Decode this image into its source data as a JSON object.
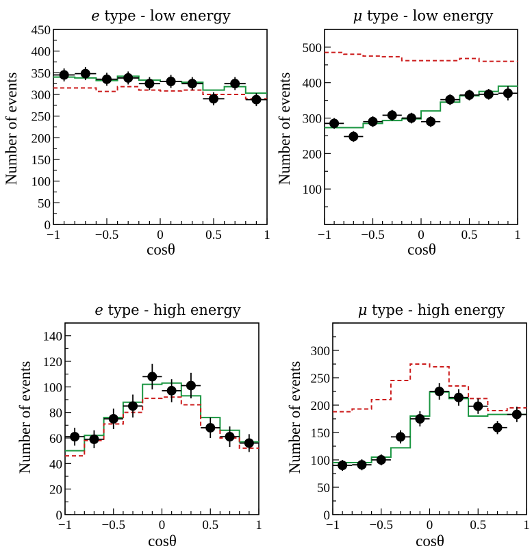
{
  "chart_data": [
    {
      "type": "line",
      "title_flavor": "e",
      "title_rest": " type - low energy",
      "xlabel": "cosθ",
      "ylabel": "Number of events",
      "xlim": [
        -1,
        1
      ],
      "ylim": [
        0,
        450
      ],
      "xticks": [
        -1,
        -0.5,
        0,
        0.5,
        1
      ],
      "xtick_labels": [
        "−1",
        "−0.5",
        "0",
        "0.5",
        "1"
      ],
      "yticks": [
        0,
        50,
        100,
        150,
        200,
        250,
        300,
        350,
        400,
        450
      ],
      "ytick_labels": [
        "0",
        "50",
        "100",
        "150",
        "200",
        "250",
        "300",
        "350",
        "400",
        "450"
      ],
      "bin_edges": [
        -1,
        -0.8,
        -0.6,
        -0.4,
        -0.2,
        0,
        0.2,
        0.4,
        0.6,
        0.8,
        1
      ],
      "data_points": {
        "x": [
          -0.9,
          -0.7,
          -0.5,
          -0.3,
          -0.1,
          0.1,
          0.3,
          0.5,
          0.7,
          0.9
        ],
        "y": [
          345,
          348,
          335,
          338,
          325,
          330,
          325,
          290,
          325,
          288
        ],
        "err": [
          15,
          15,
          15,
          15,
          15,
          15,
          15,
          15,
          15,
          15
        ]
      },
      "series": [
        {
          "values": [
            340,
            338,
            332,
            342,
            333,
            330,
            328,
            310,
            318,
            303
          ],
          "color": "#1a9641",
          "style": "solid"
        },
        {
          "values": [
            315,
            315,
            307,
            318,
            310,
            308,
            310,
            300,
            300,
            290
          ],
          "color": "#cc1c1c",
          "style": "dashed"
        }
      ]
    },
    {
      "type": "line",
      "title_flavor": "μ",
      "title_rest": " type - low energy",
      "xlabel": "cosθ",
      "ylabel": "Number of events",
      "xlim": [
        -1,
        1
      ],
      "ylim": [
        0,
        550
      ],
      "xticks": [
        -1,
        -0.5,
        0,
        0.5,
        1
      ],
      "xtick_labels": [
        "−1",
        "−0.5",
        "0",
        "0.5",
        "1"
      ],
      "yticks": [
        100,
        200,
        300,
        400,
        500
      ],
      "ytick_labels": [
        "100",
        "200",
        "300",
        "400",
        "500"
      ],
      "bin_edges": [
        -1,
        -0.8,
        -0.6,
        -0.4,
        -0.2,
        0,
        0.2,
        0.4,
        0.6,
        0.8,
        1
      ],
      "data_points": {
        "x": [
          -0.9,
          -0.7,
          -0.5,
          -0.3,
          -0.1,
          0.1,
          0.3,
          0.5,
          0.7,
          0.9
        ],
        "y": [
          285,
          248,
          290,
          308,
          300,
          290,
          352,
          365,
          367,
          370
        ],
        "err": [
          15,
          15,
          15,
          15,
          15,
          15,
          15,
          15,
          15,
          20
        ]
      },
      "series": [
        {
          "values": [
            273,
            273,
            285,
            293,
            298,
            320,
            345,
            363,
            375,
            390
          ],
          "color": "#1a9641",
          "style": "solid"
        },
        {
          "values": [
            485,
            480,
            475,
            473,
            462,
            462,
            462,
            468,
            460,
            460
          ],
          "color": "#cc1c1c",
          "style": "dashed"
        }
      ]
    },
    {
      "type": "line",
      "title_flavor": "e",
      "title_rest": " type - high energy",
      "xlabel": "cosθ",
      "ylabel": "Number of events",
      "xlim": [
        -1,
        1
      ],
      "ylim": [
        0,
        150
      ],
      "xticks": [
        -1,
        -0.5,
        0,
        0.5,
        1
      ],
      "xtick_labels": [
        "−1",
        "−0.5",
        "0",
        "0.5",
        "1"
      ],
      "yticks": [
        0,
        20,
        40,
        60,
        80,
        100,
        120,
        140
      ],
      "ytick_labels": [
        "0",
        "20",
        "40",
        "60",
        "80",
        "100",
        "120",
        "140"
      ],
      "bin_edges": [
        -1,
        -0.8,
        -0.6,
        -0.4,
        -0.2,
        0,
        0.2,
        0.4,
        0.6,
        0.8,
        1
      ],
      "data_points": {
        "x": [
          -0.9,
          -0.7,
          -0.5,
          -0.3,
          -0.1,
          0.1,
          0.3,
          0.5,
          0.7,
          0.9
        ],
        "y": [
          61,
          59,
          75,
          85,
          108,
          97,
          101,
          68,
          61,
          56
        ],
        "err": [
          7,
          7,
          8,
          9,
          10,
          9,
          10,
          8,
          8,
          7
        ]
      },
      "series": [
        {
          "values": [
            50,
            62,
            76,
            88,
            102,
            103,
            93,
            76,
            66,
            57
          ],
          "color": "#1a9641",
          "style": "solid"
        },
        {
          "values": [
            46,
            58,
            71,
            80,
            91,
            92,
            86,
            68,
            60,
            52
          ],
          "color": "#cc1c1c",
          "style": "dashed"
        }
      ]
    },
    {
      "type": "line",
      "title_flavor": "μ",
      "title_rest": " type - high energy",
      "xlabel": "cosθ",
      "ylabel": "Number of events",
      "xlim": [
        -1,
        1
      ],
      "ylim": [
        0,
        350
      ],
      "xticks": [
        -1,
        -0.5,
        0,
        0.5,
        1
      ],
      "xtick_labels": [
        "−1",
        "−0.5",
        "0",
        "0.5",
        "1"
      ],
      "yticks": [
        0,
        50,
        100,
        150,
        200,
        250,
        300
      ],
      "ytick_labels": [
        "0",
        "50",
        "100",
        "150",
        "200",
        "250",
        "300"
      ],
      "bin_edges": [
        -1,
        -0.8,
        -0.6,
        -0.4,
        -0.2,
        0,
        0.2,
        0.4,
        0.6,
        0.8,
        1
      ],
      "data_points": {
        "x": [
          -0.9,
          -0.7,
          -0.5,
          -0.3,
          -0.1,
          0.1,
          0.3,
          0.5,
          0.7,
          0.9
        ],
        "y": [
          90,
          91,
          100,
          142,
          175,
          225,
          214,
          198,
          159,
          183
        ],
        "err": [
          10,
          10,
          10,
          12,
          14,
          15,
          15,
          14,
          12,
          14
        ]
      },
      "series": [
        {
          "values": [
            95,
            95,
            105,
            122,
            180,
            224,
            212,
            180,
            183,
            183
          ],
          "color": "#1a9641",
          "style": "solid"
        },
        {
          "values": [
            188,
            193,
            210,
            245,
            275,
            270,
            235,
            212,
            190,
            195
          ],
          "color": "#cc1c1c",
          "style": "dashed"
        }
      ]
    }
  ]
}
